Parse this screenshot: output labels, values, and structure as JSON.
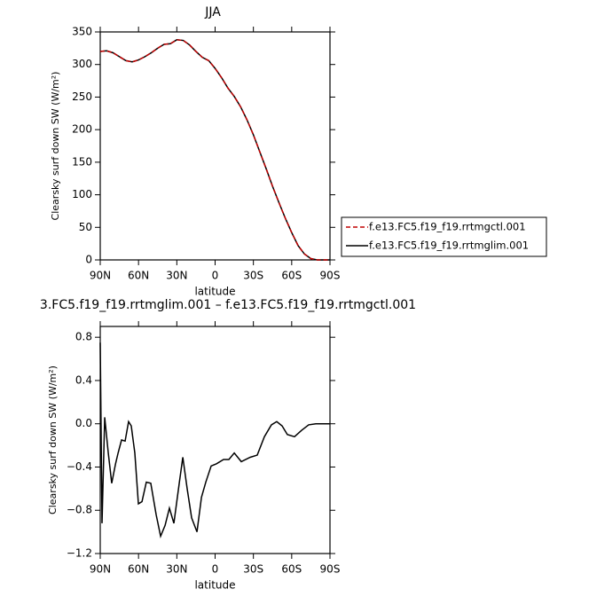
{
  "chart_data": [
    {
      "type": "line",
      "title": "JJA",
      "xlabel": "latitude",
      "ylabel": "Clearsky surf down SW (W/m²)",
      "x": [
        90,
        85,
        80,
        75,
        70,
        65,
        60,
        55,
        50,
        45,
        40,
        35,
        30,
        25,
        20,
        15,
        10,
        5,
        0,
        -5,
        -10,
        -15,
        -20,
        -25,
        -30,
        -35,
        -40,
        -45,
        -50,
        -55,
        -60,
        -65,
        -70,
        -75,
        -80,
        -85,
        -90
      ],
      "xlim": [
        90,
        -90
      ],
      "xticks": [
        {
          "value": 90,
          "label": "90N"
        },
        {
          "value": 60,
          "label": "60N"
        },
        {
          "value": 30,
          "label": "30N"
        },
        0,
        {
          "value": -30,
          "label": "30S"
        },
        {
          "value": -60,
          "label": "60S"
        },
        {
          "value": -90,
          "label": "90S"
        }
      ],
      "ylim": [
        0,
        350
      ],
      "yticks": [
        0,
        50,
        100,
        150,
        200,
        250,
        300,
        350
      ],
      "series": [
        {
          "name": "f.e13.FC5.f19_f19.rrtmgctl.001",
          "color": "#c00000",
          "dashed": true,
          "values": [
            320,
            321,
            318,
            312,
            306,
            304,
            307,
            312,
            318,
            325,
            331,
            332,
            338,
            337,
            330,
            320,
            311,
            306,
            294,
            280,
            264,
            251,
            235,
            215,
            192,
            166,
            140,
            113,
            88,
            64,
            42,
            22,
            9,
            2,
            0,
            0,
            0
          ]
        },
        {
          "name": "f.e13.FC5.f19_f19.rrtmglim.001",
          "color": "#000000",
          "dashed": false,
          "values": [
            320,
            321,
            318,
            312,
            306,
            304,
            307,
            312,
            318,
            325,
            331,
            332,
            338,
            337,
            330,
            320,
            311,
            306,
            294,
            280,
            264,
            251,
            235,
            215,
            192,
            166,
            140,
            113,
            88,
            64,
            42,
            22,
            9,
            2,
            0,
            0,
            0
          ]
        }
      ]
    },
    {
      "type": "line",
      "title": "3.FC5.f19_f19.rrtmglim.001 – f.e13.FC5.f19_f19.rrtmgctl.001",
      "xlabel": "latitude",
      "ylabel": "Clearsky surf down SW (W/m²)",
      "x": [
        90,
        88.6,
        86.5,
        83.7,
        81,
        78,
        76,
        73.3,
        70.5,
        67.8,
        65.7,
        62.9,
        60.1,
        57.3,
        53.9,
        50.4,
        46.2,
        42.7,
        39.2,
        35.8,
        32.3,
        28.1,
        25.3,
        21.9,
        18.4,
        14.2,
        10.7,
        7.3,
        3.1,
        -1.1,
        -6.6,
        -10.8,
        -15,
        -20.5,
        -27.5,
        -33,
        -38.6,
        -44.1,
        -48.3,
        -52.5,
        -56.6,
        -62.2,
        -67.8,
        -73.3,
        -78.9,
        -90
      ],
      "xlim": [
        90,
        -90
      ],
      "xticks": [
        {
          "value": 90,
          "label": "90N"
        },
        {
          "value": 60,
          "label": "60N"
        },
        {
          "value": 30,
          "label": "30N"
        },
        0,
        {
          "value": -30,
          "label": "30S"
        },
        {
          "value": -60,
          "label": "60S"
        },
        {
          "value": -90,
          "label": "90S"
        }
      ],
      "ylim": [
        -1.2,
        0.9
      ],
      "yticks": [
        {
          "value": -1.2,
          "label": "−1.2"
        },
        {
          "value": -0.8,
          "label": "−0.8"
        },
        {
          "value": -0.4,
          "label": "−0.4"
        },
        {
          "value": 0,
          "label": "0.0"
        },
        0.4,
        0.8
      ],
      "color": "#000000",
      "values": [
        0.75,
        -0.92,
        0.06,
        -0.27,
        -0.55,
        -0.37,
        -0.27,
        -0.15,
        -0.16,
        0.02,
        -0.02,
        -0.27,
        -0.74,
        -0.72,
        -0.54,
        -0.55,
        -0.84,
        -1.04,
        -0.94,
        -0.78,
        -0.92,
        -0.55,
        -0.31,
        -0.6,
        -0.87,
        -1.0,
        -0.68,
        -0.54,
        -0.39,
        -0.37,
        -0.33,
        -0.33,
        -0.27,
        -0.35,
        -0.31,
        -0.29,
        -0.12,
        -0.01,
        0.02,
        -0.02,
        -0.1,
        -0.12,
        -0.06,
        -0.01,
        0,
        0
      ]
    }
  ]
}
